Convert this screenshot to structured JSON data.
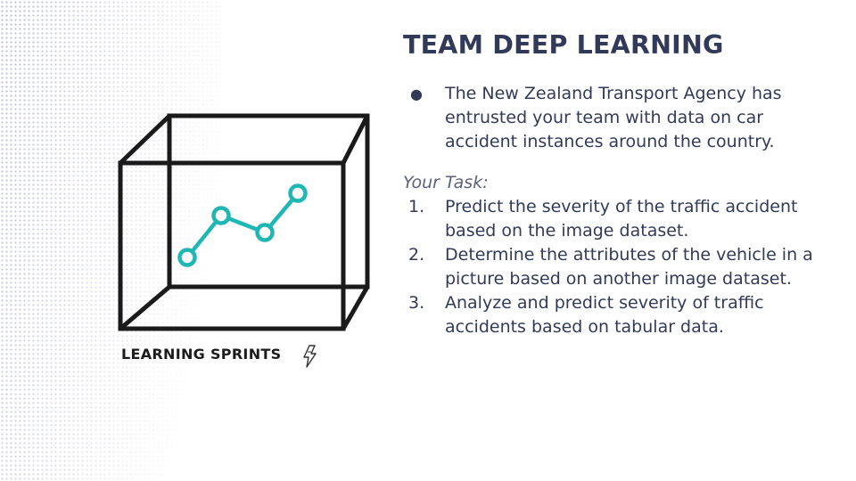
{
  "slide": {
    "title": "TEAM DEEP LEARNING",
    "bullets": [
      {
        "text": "The New Zealand Transport Agency has entrusted your team with data on car accident instances around the country."
      }
    ],
    "task_heading": "Your Task:",
    "tasks": [
      {
        "number": "1.",
        "text": "Predict the severity of the traffic accident based on the image dataset."
      },
      {
        "number": "2.",
        "text": "Determine the attributes of the vehicle in a picture based on another image dataset."
      },
      {
        "number": "3.",
        "text": "Analyze and predict severity of traffic accidents based on tabular data."
      }
    ]
  },
  "logo": {
    "text": "LEARNING SPRINTS",
    "line_color": "#1a1a1a",
    "chart_color": "#1fb7b4",
    "icons": [
      "cube-icon",
      "line-chart-icon",
      "lightning-bolt-icon"
    ]
  },
  "colors": {
    "title": "#323a5a",
    "body_text": "#323a5a",
    "dot_pattern": "#b3b5d6"
  }
}
